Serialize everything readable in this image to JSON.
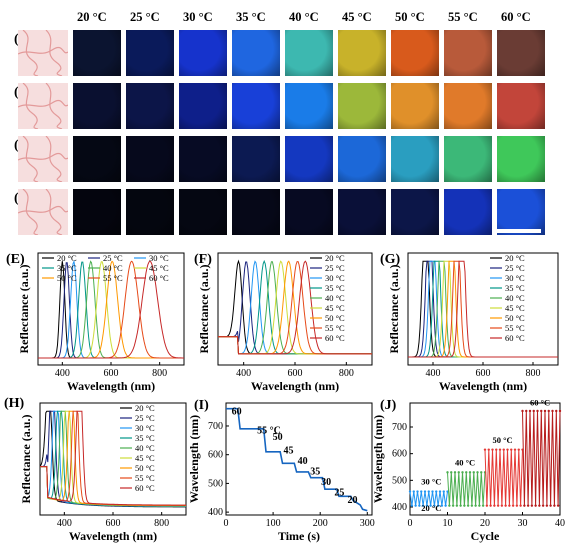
{
  "temperatures": [
    "20 °C",
    "25 °C",
    "30 °C",
    "35 °C",
    "40 °C",
    "45 °C",
    "50 °C",
    "55 °C",
    "60 °C"
  ],
  "rows": [
    {
      "label": "(A)",
      "colors": [
        "#0b1430",
        "#0a1a5a",
        "#1633cc",
        "#1f66e0",
        "#3db8b0",
        "#c8b22a",
        "#d85a1c",
        "#b85a3a",
        "#6a3c34"
      ]
    },
    {
      "label": "(B)",
      "colors": [
        "#0a1030",
        "#0c1548",
        "#0e1f8a",
        "#1840d8",
        "#1a7ce8",
        "#9cb83a",
        "#e0902a",
        "#e07a2a",
        "#c2453a"
      ]
    },
    {
      "label": "(C)",
      "colors": [
        "#050814",
        "#06091c",
        "#070b24",
        "#0c1a52",
        "#1438c0",
        "#1c68d8",
        "#2a9ec0",
        "#3cb878",
        "#3fc85a"
      ]
    },
    {
      "label": "(D)",
      "colors": [
        "#04050e",
        "#04060f",
        "#050712",
        "#060818",
        "#070a22",
        "#0a1038",
        "#0c1648",
        "#1432b8",
        "#1b50d8"
      ]
    }
  ],
  "panels": [
    {
      "label": "(E)",
      "ylabel": "Reflectance (a.u.)",
      "xlabel": "Wavelength (nm)",
      "xticks": [
        "400",
        "600",
        "800"
      ]
    },
    {
      "label": "(F)",
      "ylabel": "Reflectance (a.u.)",
      "xlabel": "Wavelength (nm)",
      "xticks": [
        "400",
        "600",
        "800"
      ]
    },
    {
      "label": "(G)",
      "ylabel": "Reflectance (a.u.)",
      "xlabel": "Wavelength (nm)",
      "xticks": [
        "400",
        "600",
        "800"
      ]
    },
    {
      "label": "(H)",
      "ylabel": "Reflectance (a.u.)",
      "xlabel": "Wavelength (nm)",
      "xticks": [
        "400",
        "600",
        "800"
      ]
    },
    {
      "label": "(I)",
      "ylabel": "Wavelength (nm)",
      "xlabel": "Time (s)",
      "xticks": [
        "0",
        "100",
        "200",
        "300"
      ],
      "yticks": [
        "400",
        "500",
        "600",
        "700"
      ]
    },
    {
      "label": "(J)",
      "ylabel": "Wavelength (nm)",
      "xlabel": "Cycle",
      "xticks": [
        "0",
        "10",
        "20",
        "30",
        "40"
      ],
      "yticks": [
        "400",
        "500",
        "600",
        "700"
      ]
    }
  ],
  "series_colors": [
    "#000000",
    "#1a237e",
    "#2196f3",
    "#009688",
    "#4caf50",
    "#cddc39",
    "#ff9800",
    "#e64a19",
    "#c62828"
  ],
  "chart_data": [
    {
      "type": "line",
      "panel": "E",
      "x_unit": "nm",
      "xlim": [
        300,
        900
      ],
      "series": [
        {
          "name": "20 °C",
          "peak": 400
        },
        {
          "name": "25 °C",
          "peak": 418
        },
        {
          "name": "30 °C",
          "peak": 447
        },
        {
          "name": "35 °C",
          "peak": 482
        },
        {
          "name": "40 °C",
          "peak": 517
        },
        {
          "name": "45 °C",
          "peak": 562
        },
        {
          "name": "50 °C",
          "peak": 605
        },
        {
          "name": "55 °C",
          "peak": 685
        },
        {
          "name": "60 °C",
          "peak": 760
        }
      ]
    },
    {
      "type": "line",
      "panel": "F",
      "x_unit": "nm",
      "xlim": [
        300,
        900
      ],
      "series": [
        {
          "name": "20 °C",
          "peak": 380
        },
        {
          "name": "25 °C",
          "peak": 410
        },
        {
          "name": "30 °C",
          "peak": 445
        },
        {
          "name": "35 °C",
          "peak": 480
        },
        {
          "name": "40 °C",
          "peak": 510
        },
        {
          "name": "45 °C",
          "peak": 545
        },
        {
          "name": "50 °C",
          "peak": 575
        },
        {
          "name": "55 °C",
          "peak": 610
        },
        {
          "name": "60 °C",
          "peak": 640
        }
      ]
    },
    {
      "type": "line",
      "panel": "G",
      "x_unit": "nm",
      "xlim": [
        300,
        900
      ],
      "series": [
        {
          "name": "20 °C",
          "peak": 370
        },
        {
          "name": "25 °C",
          "peak": 385
        },
        {
          "name": "30 °C",
          "peak": 398
        },
        {
          "name": "35 °C",
          "peak": 415
        },
        {
          "name": "40 °C",
          "peak": 435
        },
        {
          "name": "45 °C",
          "peak": 455
        },
        {
          "name": "50 °C",
          "peak": 475
        },
        {
          "name": "55 °C",
          "peak": 495
        },
        {
          "name": "60 °C",
          "peak": 515
        }
      ]
    },
    {
      "type": "line",
      "panel": "H",
      "x_unit": "nm",
      "xlim": [
        300,
        900
      ],
      "series": [
        {
          "name": "20 °C",
          "peak": 335
        },
        {
          "name": "25 °C",
          "peak": 350
        },
        {
          "name": "30 °C",
          "peak": 365
        },
        {
          "name": "35 °C",
          "peak": 380
        },
        {
          "name": "40 °C",
          "peak": 395
        },
        {
          "name": "45 °C",
          "peak": 412
        },
        {
          "name": "50 °C",
          "peak": 428
        },
        {
          "name": "55 °C",
          "peak": 445
        },
        {
          "name": "60 °C",
          "peak": 462
        }
      ]
    },
    {
      "type": "line",
      "panel": "I",
      "xlabel": "Time (s)",
      "ylabel": "Wavelength (nm)",
      "xlim": [
        0,
        310
      ],
      "ylim": [
        390,
        780
      ],
      "annotations": [
        "60",
        "55 °C",
        "50",
        "45",
        "40",
        "35",
        "30",
        "25",
        "20"
      ],
      "x": [
        0,
        25,
        30,
        55,
        80,
        85,
        115,
        120,
        145,
        150,
        175,
        180,
        205,
        210,
        235,
        240,
        265,
        270,
        285,
        290,
        300
      ],
      "y": [
        760,
        760,
        690,
        690,
        690,
        610,
        610,
        570,
        570,
        540,
        540,
        520,
        520,
        480,
        480,
        455,
        455,
        440,
        425,
        410,
        405
      ]
    },
    {
      "type": "line",
      "panel": "J",
      "xlabel": "Cycle",
      "ylabel": "Wavelength (nm)",
      "xlim": [
        0,
        40
      ],
      "ylim": [
        370,
        790
      ],
      "blocks": [
        {
          "label": "20 °C",
          "low": 405,
          "high": 405,
          "from": 0,
          "to": 10,
          "color": "#2196f3"
        },
        {
          "label": "30 °C",
          "low": 405,
          "high": 458,
          "from": 0,
          "to": 10,
          "color": "#2196f3"
        },
        {
          "label": "40 °C",
          "low": 405,
          "high": 530,
          "from": 10,
          "to": 20,
          "color": "#4caf50"
        },
        {
          "label": "50 °C",
          "low": 405,
          "high": 615,
          "from": 20,
          "to": 30,
          "color": "#e53935"
        },
        {
          "label": "60 °C",
          "low": 405,
          "high": 760,
          "from": 30,
          "to": 40,
          "color": "#b71c1c"
        }
      ]
    }
  ]
}
